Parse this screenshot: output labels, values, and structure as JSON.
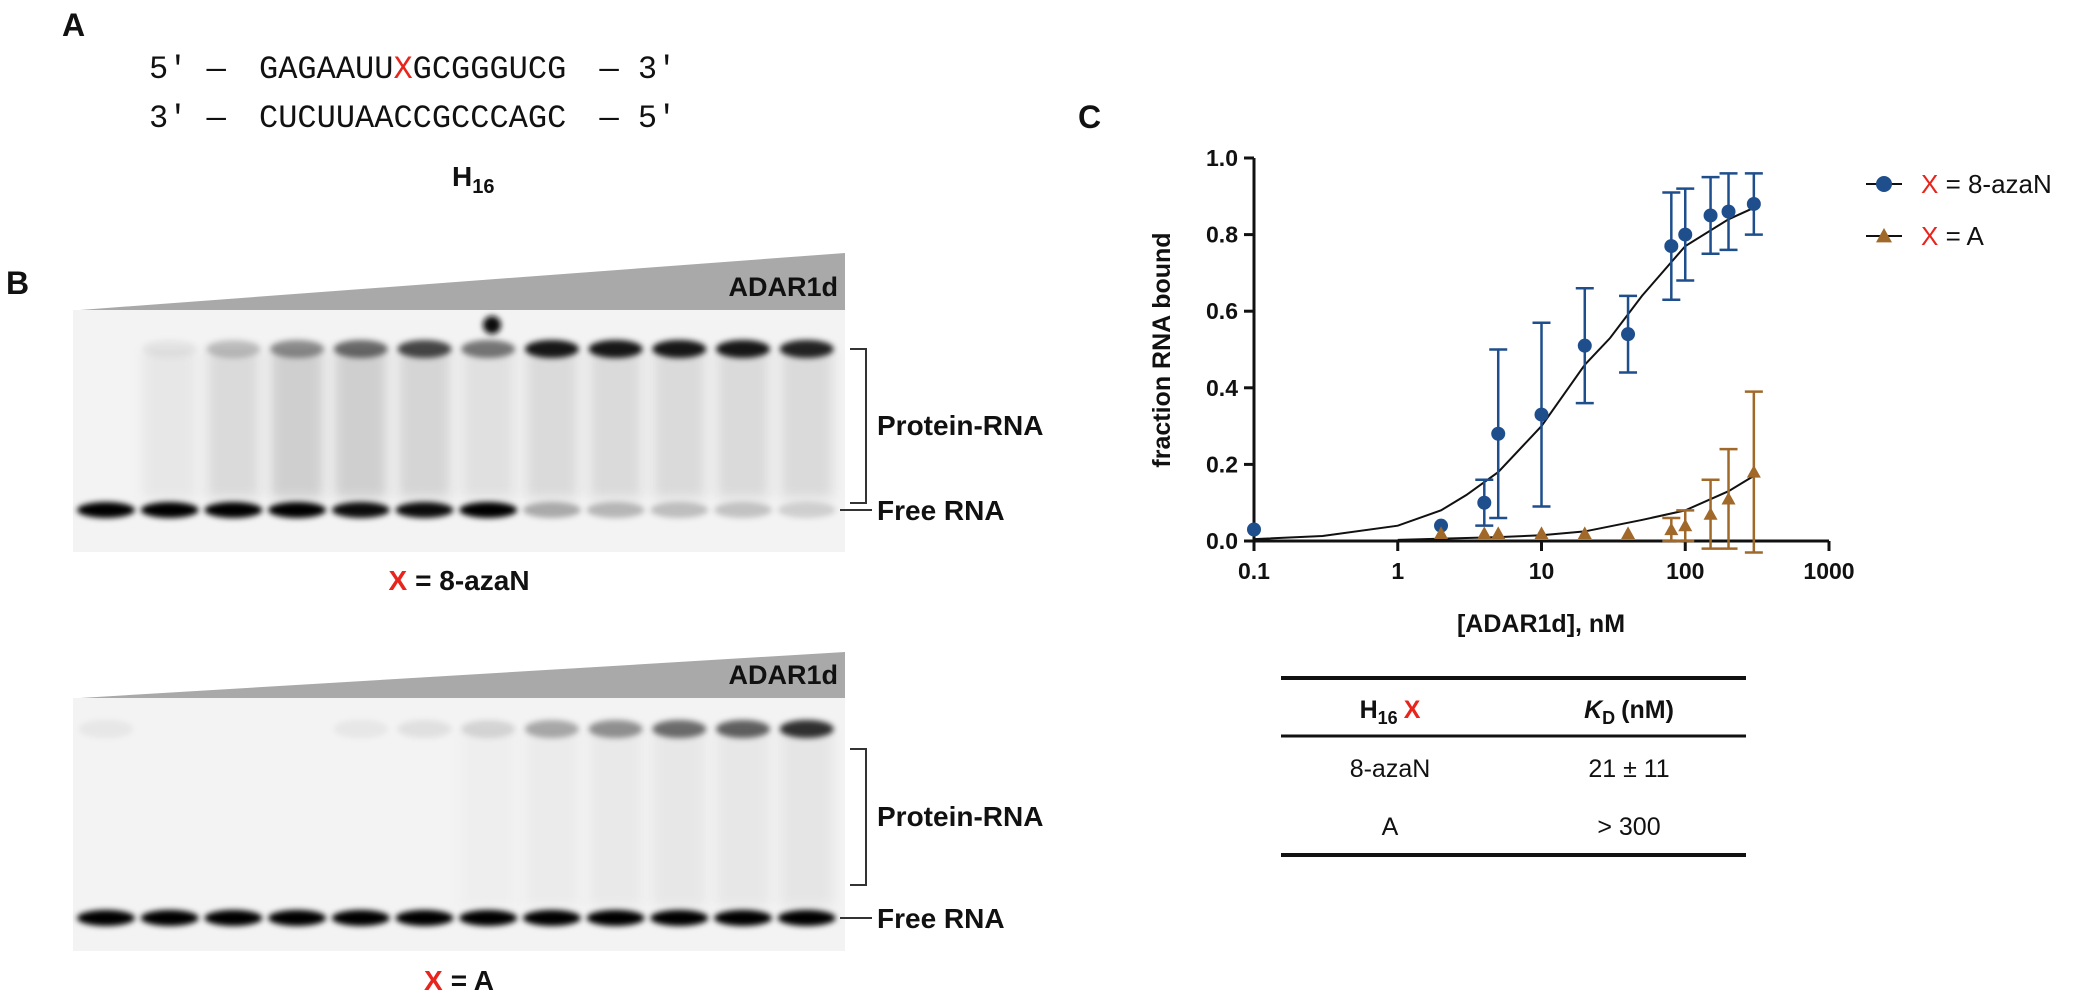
{
  "panel_labels": [
    "A",
    "B",
    "C"
  ],
  "duplex": {
    "top": {
      "left": "5′ —",
      "before": "GAGAAUU",
      "mod": "X",
      "after": "GCGGGUCG",
      "right": "— 3′"
    },
    "bottom": {
      "left": "3′ —",
      "seq": "CUCUUAACCGCCCAGC",
      "right": "— 5′"
    },
    "name": {
      "main": "H",
      "sub": "16"
    }
  },
  "gels": [
    {
      "wedge_label": "ADAR1d",
      "bands": [
        "Protein-RNA",
        "Free RNA"
      ],
      "caption": {
        "mod": "X",
        "rest": "= 8-azaN"
      }
    },
    {
      "wedge_label": "ADAR1d",
      "bands": [
        "Protein-RNA",
        "Free RNA"
      ],
      "caption": {
        "mod": "X",
        "rest": "= A"
      }
    }
  ],
  "chart_data": {
    "type": "scatter",
    "x_label": "[ADAR1d], nM",
    "y_label": "fraction RNA bound",
    "log_x": true,
    "xlim": [
      0.1,
      1000
    ],
    "xticks": [
      0.1,
      1,
      10,
      100,
      1000
    ],
    "ylim": [
      0,
      1.0
    ],
    "yticks": [
      {
        "value": 0,
        "label": "0.0"
      },
      {
        "value": 0.2,
        "label": "0.2"
      },
      {
        "value": 0.4,
        "label": "0.4"
      },
      {
        "value": 0.6,
        "label": "0.6"
      },
      {
        "value": 0.8,
        "label": "0.8"
      },
      {
        "value": 1.0,
        "label": "1.0"
      }
    ],
    "legend": "upper right",
    "series": [
      {
        "name": "X = 8-azaN",
        "color": "#1f4e8c",
        "marker": "circle",
        "x": [
          0.1,
          2,
          4,
          5,
          10,
          20,
          40,
          80,
          100,
          150,
          200,
          300
        ],
        "values": [
          0.03,
          0.04,
          0.1,
          0.28,
          0.33,
          0.51,
          0.54,
          0.77,
          0.8,
          0.85,
          0.86,
          0.88
        ],
        "errors": [
          0,
          0,
          0.06,
          0.22,
          0.24,
          0.15,
          0.1,
          0.14,
          0.12,
          0.1,
          0.1,
          0.08
        ],
        "fit": {
          "x": [
            0.1,
            0.3,
            1,
            2,
            3,
            5,
            10,
            20,
            30,
            50,
            100,
            200,
            300
          ],
          "values": [
            0.005,
            0.013,
            0.04,
            0.08,
            0.12,
            0.18,
            0.3,
            0.46,
            0.53,
            0.64,
            0.77,
            0.84,
            0.87
          ]
        }
      },
      {
        "name": "X = A",
        "color": "#a0692a",
        "marker": "triangle",
        "x": [
          2,
          4,
          5,
          10,
          20,
          40,
          80,
          100,
          150,
          200,
          300
        ],
        "values": [
          0.02,
          0.02,
          0.02,
          0.02,
          0.02,
          0.02,
          0.03,
          0.04,
          0.07,
          0.11,
          0.18
        ],
        "errors": [
          0,
          0,
          0,
          0,
          0,
          0,
          0.03,
          0.04,
          0.09,
          0.13,
          0.21
        ],
        "fit": {
          "x": [
            1,
            5,
            10,
            20,
            50,
            100,
            200,
            300
          ],
          "values": [
            0.003,
            0.01,
            0.015,
            0.025,
            0.055,
            0.08,
            0.13,
            0.17
          ]
        }
      }
    ]
  },
  "table": {
    "header": [
      {
        "main": "H",
        "sub": "16",
        "mod": "X"
      },
      {
        "main": "K",
        "sub": "D",
        "rest": "(nM)"
      }
    ],
    "rows": [
      [
        "8-azaN",
        "21 ± 11"
      ],
      [
        "A",
        "> 300"
      ]
    ]
  }
}
